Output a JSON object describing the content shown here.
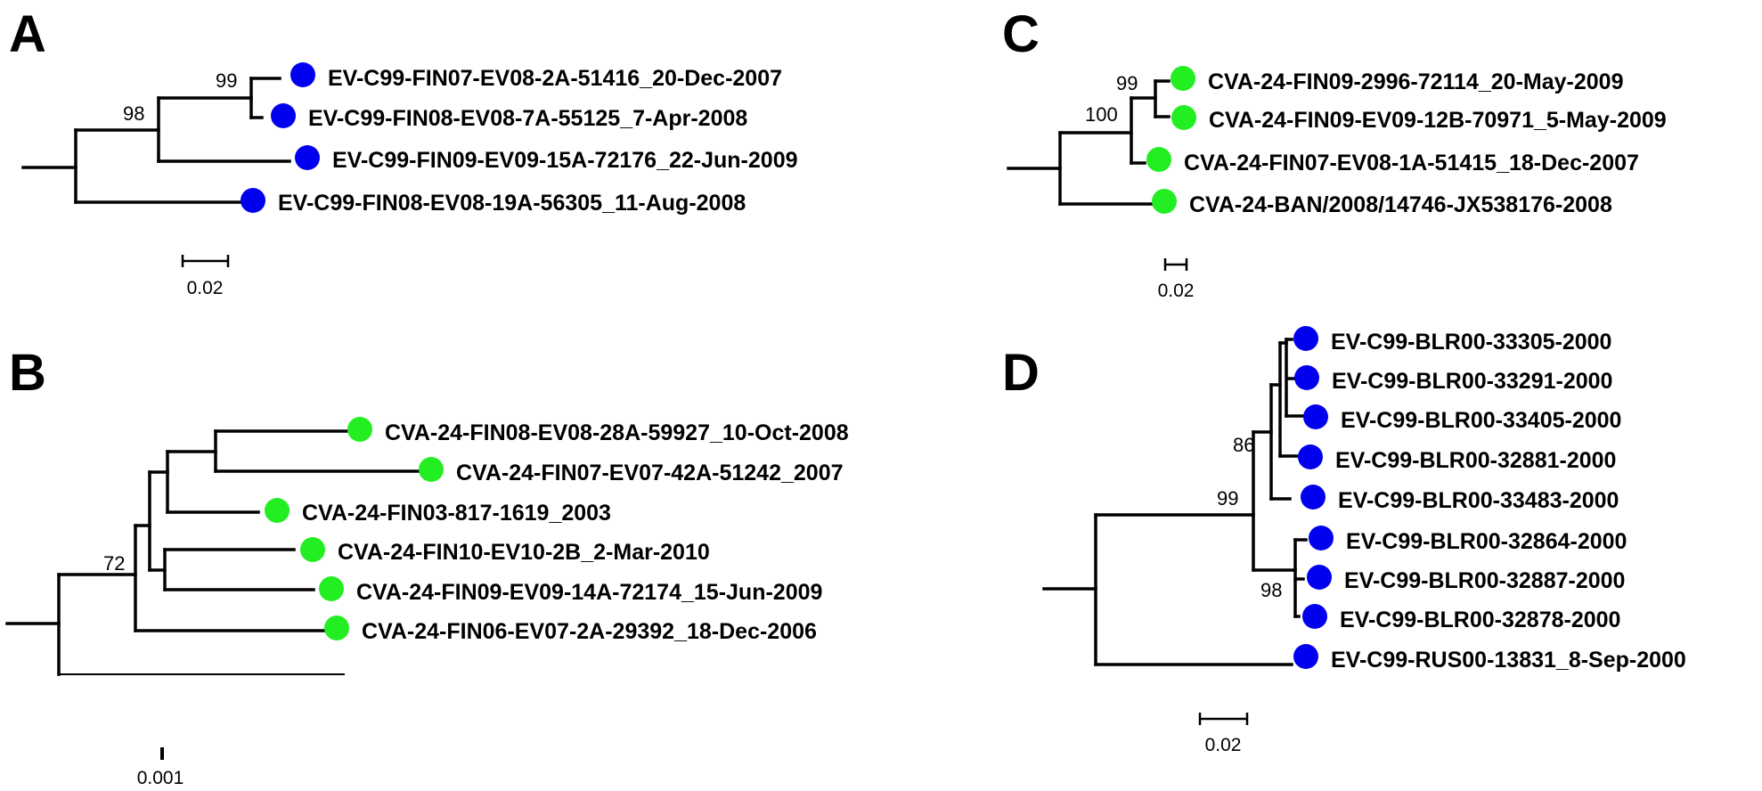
{
  "colors": {
    "blue_marker": "#0000ee",
    "green_marker": "#22ee22",
    "branch": "#000000"
  },
  "panels": {
    "A": {
      "letter": "A",
      "leaves": [
        {
          "label": "EV-C99-FIN07-EV08-2A-51416_20-Dec-2007",
          "marker": "blue"
        },
        {
          "label": "EV-C99-FIN08-EV08-7A-55125_7-Apr-2008",
          "marker": "blue"
        },
        {
          "label": "EV-C99-FIN09-EV09-15A-72176_22-Jun-2009",
          "marker": "blue"
        },
        {
          "label": "EV-C99-FIN08-EV08-19A-56305_11-Aug-2008",
          "marker": "blue"
        }
      ],
      "supports": [
        "99",
        "98"
      ],
      "scale": "0.02"
    },
    "B": {
      "letter": "B",
      "leaves": [
        {
          "label": "CVA-24-FIN08-EV08-28A-59927_10-Oct-2008",
          "marker": "green"
        },
        {
          "label": "CVA-24-FIN07-EV07-42A-51242_2007",
          "marker": "green"
        },
        {
          "label": "CVA-24-FIN03-817-1619_2003",
          "marker": "green"
        },
        {
          "label": "CVA-24-FIN10-EV10-2B_2-Mar-2010",
          "marker": "green"
        },
        {
          "label": "CVA-24-FIN09-EV09-14A-72174_15-Jun-2009",
          "marker": "green"
        },
        {
          "label": "CVA-24-FIN06-EV07-2A-29392_18-Dec-2006",
          "marker": "green"
        }
      ],
      "supports": [
        "72"
      ],
      "scale": "0.001"
    },
    "C": {
      "letter": "C",
      "leaves": [
        {
          "label": "CVA-24-FIN09-2996-72114_20-May-2009",
          "marker": "green"
        },
        {
          "label": "CVA-24-FIN09-EV09-12B-70971_5-May-2009",
          "marker": "green"
        },
        {
          "label": "CVA-24-FIN07-EV08-1A-51415_18-Dec-2007",
          "marker": "green"
        },
        {
          "label": "CVA-24-BAN/2008/14746-JX538176-2008",
          "marker": "green"
        }
      ],
      "supports": [
        "99",
        "100"
      ],
      "scale": "0.02"
    },
    "D": {
      "letter": "D",
      "leaves": [
        {
          "label": "EV-C99-BLR00-33305-2000",
          "marker": "blue"
        },
        {
          "label": "EV-C99-BLR00-33291-2000",
          "marker": "blue"
        },
        {
          "label": "EV-C99-BLR00-33405-2000",
          "marker": "blue"
        },
        {
          "label": "EV-C99-BLR00-32881-2000",
          "marker": "blue"
        },
        {
          "label": "EV-C99-BLR00-33483-2000",
          "marker": "blue"
        },
        {
          "label": "EV-C99-BLR00-32864-2000",
          "marker": "blue"
        },
        {
          "label": "EV-C99-BLR00-32887-2000",
          "marker": "blue"
        },
        {
          "label": "EV-C99-BLR00-32878-2000",
          "marker": "blue"
        },
        {
          "label": "EV-C99-RUS00-13831_8-Sep-2000",
          "marker": "blue"
        }
      ],
      "supports": [
        "86",
        "99",
        "98"
      ],
      "scale": "0.02"
    }
  }
}
